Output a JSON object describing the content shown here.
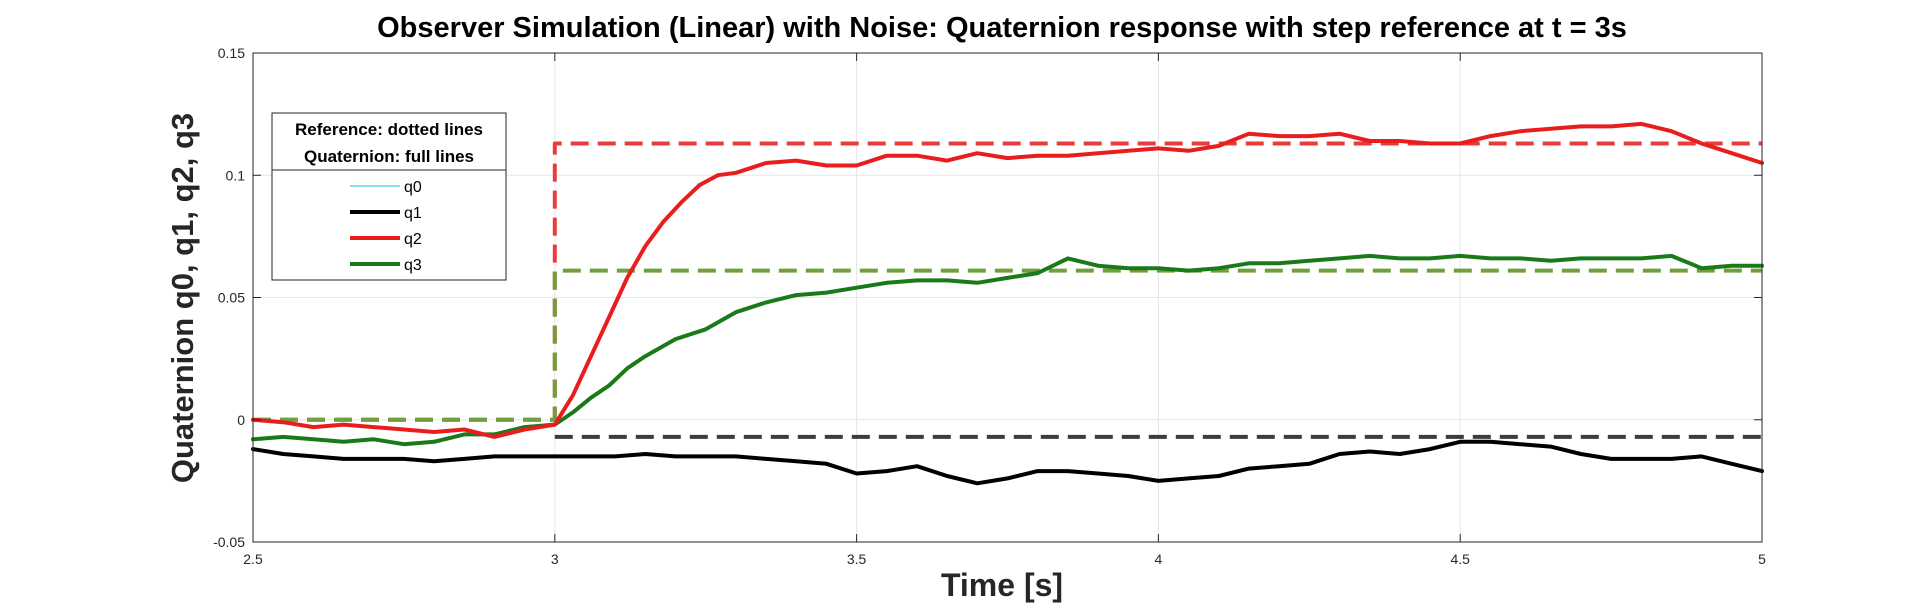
{
  "chart_data": {
    "type": "line",
    "title": "Observer Simulation (Linear) with Noise: Quaternion response with step reference at t = 3s",
    "xlabel": "Time [s]",
    "ylabel": "Quaternion q0, q1, q2, q3",
    "xlim": [
      2.5,
      5
    ],
    "ylim": [
      -0.05,
      0.15
    ],
    "xticks": [
      2.5,
      3,
      3.5,
      4,
      4.5,
      5
    ],
    "xtick_labels": [
      "2.5",
      "3",
      "3.5",
      "4",
      "4.5",
      "5"
    ],
    "yticks": [
      -0.05,
      0,
      0.05,
      0.1,
      0.15
    ],
    "ytick_labels": [
      "-0.05",
      "0",
      "0.05",
      "0.1",
      "0.15"
    ],
    "grid": true,
    "legend": {
      "placement": "top-left",
      "title_lines": [
        "Reference: dotted lines",
        "Quaternion: full lines"
      ]
    },
    "series": [
      {
        "name": "q0",
        "color": "#5fd7e6",
        "style": "solid",
        "legend": true,
        "x": [],
        "y": []
      },
      {
        "name": "q1",
        "color": "#000000",
        "style": "solid",
        "legend": true,
        "x": [
          2.5,
          2.55,
          2.6,
          2.65,
          2.7,
          2.75,
          2.8,
          2.85,
          2.9,
          2.95,
          3.0,
          3.05,
          3.1,
          3.15,
          3.2,
          3.25,
          3.3,
          3.35,
          3.4,
          3.45,
          3.5,
          3.55,
          3.6,
          3.65,
          3.7,
          3.75,
          3.8,
          3.85,
          3.9,
          3.95,
          4.0,
          4.05,
          4.1,
          4.15,
          4.2,
          4.25,
          4.3,
          4.35,
          4.4,
          4.45,
          4.5,
          4.55,
          4.6,
          4.65,
          4.7,
          4.75,
          4.8,
          4.85,
          4.9,
          4.95,
          5.0
        ],
        "y": [
          -0.012,
          -0.014,
          -0.015,
          -0.016,
          -0.016,
          -0.016,
          -0.017,
          -0.016,
          -0.015,
          -0.015,
          -0.015,
          -0.015,
          -0.015,
          -0.014,
          -0.015,
          -0.015,
          -0.015,
          -0.016,
          -0.017,
          -0.018,
          -0.022,
          -0.021,
          -0.019,
          -0.023,
          -0.026,
          -0.024,
          -0.021,
          -0.021,
          -0.022,
          -0.023,
          -0.025,
          -0.024,
          -0.023,
          -0.02,
          -0.019,
          -0.018,
          -0.014,
          -0.013,
          -0.014,
          -0.012,
          -0.009,
          -0.009,
          -0.01,
          -0.011,
          -0.014,
          -0.016,
          -0.016,
          -0.016,
          -0.015,
          -0.018,
          -0.021
        ]
      },
      {
        "name": "q2",
        "color": "#e81e1e",
        "style": "solid",
        "legend": true,
        "x": [
          2.5,
          2.55,
          2.6,
          2.65,
          2.7,
          2.75,
          2.8,
          2.85,
          2.9,
          2.95,
          3.0,
          3.03,
          3.06,
          3.09,
          3.12,
          3.15,
          3.18,
          3.21,
          3.24,
          3.27,
          3.3,
          3.35,
          3.4,
          3.45,
          3.5,
          3.55,
          3.6,
          3.65,
          3.7,
          3.75,
          3.8,
          3.85,
          3.9,
          3.95,
          4.0,
          4.05,
          4.1,
          4.15,
          4.2,
          4.25,
          4.3,
          4.35,
          4.4,
          4.45,
          4.5,
          4.55,
          4.6,
          4.65,
          4.7,
          4.75,
          4.8,
          4.85,
          4.9,
          4.95,
          5.0
        ],
        "y": [
          0.0,
          -0.001,
          -0.003,
          -0.002,
          -0.003,
          -0.004,
          -0.005,
          -0.004,
          -0.007,
          -0.004,
          -0.002,
          0.01,
          0.026,
          0.042,
          0.058,
          0.071,
          0.081,
          0.089,
          0.096,
          0.1,
          0.101,
          0.105,
          0.106,
          0.104,
          0.104,
          0.108,
          0.108,
          0.106,
          0.109,
          0.107,
          0.108,
          0.108,
          0.109,
          0.11,
          0.111,
          0.11,
          0.112,
          0.117,
          0.116,
          0.116,
          0.117,
          0.114,
          0.114,
          0.113,
          0.113,
          0.116,
          0.118,
          0.119,
          0.12,
          0.12,
          0.121,
          0.118,
          0.113,
          0.109,
          0.105
        ]
      },
      {
        "name": "q3",
        "color": "#1a7a1a",
        "style": "solid",
        "legend": true,
        "x": [
          2.5,
          2.55,
          2.6,
          2.65,
          2.7,
          2.75,
          2.8,
          2.85,
          2.9,
          2.95,
          3.0,
          3.03,
          3.06,
          3.09,
          3.12,
          3.15,
          3.2,
          3.25,
          3.3,
          3.35,
          3.4,
          3.45,
          3.5,
          3.55,
          3.6,
          3.65,
          3.7,
          3.75,
          3.8,
          3.85,
          3.9,
          3.95,
          4.0,
          4.05,
          4.1,
          4.15,
          4.2,
          4.25,
          4.3,
          4.35,
          4.4,
          4.45,
          4.5,
          4.55,
          4.6,
          4.65,
          4.7,
          4.75,
          4.8,
          4.85,
          4.9,
          4.95,
          5.0
        ],
        "y": [
          -0.008,
          -0.007,
          -0.008,
          -0.009,
          -0.008,
          -0.01,
          -0.009,
          -0.006,
          -0.006,
          -0.003,
          -0.002,
          0.003,
          0.009,
          0.014,
          0.021,
          0.026,
          0.033,
          0.037,
          0.044,
          0.048,
          0.051,
          0.052,
          0.054,
          0.056,
          0.057,
          0.057,
          0.056,
          0.058,
          0.06,
          0.066,
          0.063,
          0.062,
          0.062,
          0.061,
          0.062,
          0.064,
          0.064,
          0.065,
          0.066,
          0.067,
          0.066,
          0.066,
          0.067,
          0.066,
          0.066,
          0.065,
          0.066,
          0.066,
          0.066,
          0.067,
          0.062,
          0.063,
          0.063
        ]
      },
      {
        "name": "q0 reference",
        "color": "#3c3c3c",
        "style": "dashed",
        "legend": false,
        "x": [
          3.0,
          5.0
        ],
        "y": [
          -0.007,
          -0.007
        ]
      },
      {
        "name": "q2 reference",
        "color": "#e83c3c",
        "style": "dashed",
        "legend": false,
        "x": [
          2.5,
          3.0,
          3.0,
          5.0
        ],
        "y": [
          0.0,
          0.0,
          0.113,
          0.113
        ]
      },
      {
        "name": "q3 reference",
        "color": "#6fa03c",
        "style": "dashed",
        "legend": false,
        "x": [
          2.5,
          3.0,
          3.0,
          5.0
        ],
        "y": [
          0.0,
          0.0,
          0.061,
          0.061
        ]
      }
    ]
  }
}
